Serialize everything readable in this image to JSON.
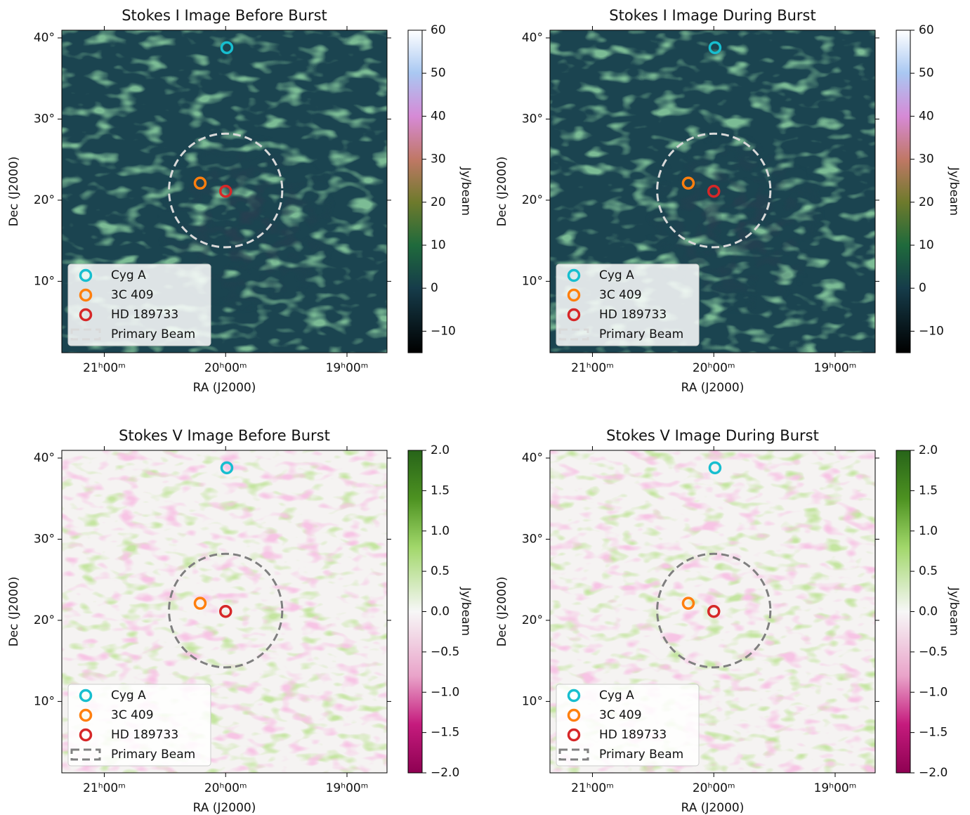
{
  "chart_data": [
    {
      "type": "image",
      "title": "Stokes I Image Before Burst",
      "xlabel": "RA (J2000)",
      "ylabel": "Dec (J2000)",
      "colorbar_label": "Jy/beam",
      "cmap": "cubehelix",
      "xlim": [
        21.35,
        18.67
      ],
      "ylim": [
        1.2,
        40.95
      ],
      "xticks": [
        {
          "value": 21,
          "label": "21ʰ00ᵐ"
        },
        {
          "value": 20,
          "label": "20ʰ00ᵐ"
        },
        {
          "value": 19,
          "label": "19ʰ00ᵐ"
        }
      ],
      "yticks": [
        {
          "value": 10,
          "label": "10°"
        },
        {
          "value": 20,
          "label": "20°"
        },
        {
          "value": 30,
          "label": "30°"
        },
        {
          "value": 40,
          "label": "40°"
        }
      ],
      "clim": [
        -15,
        60
      ],
      "cticks": [
        {
          "value": -10,
          "label": "−10"
        },
        0,
        10,
        20,
        30,
        40,
        50,
        60
      ],
      "series": [
        {
          "name": "Cyg A",
          "color": "#17becf",
          "x": [
            19.99
          ],
          "y": [
            38.8
          ]
        },
        {
          "name": "3C 409",
          "color": "#ff7f0e",
          "x": [
            20.21
          ],
          "y": [
            22.1
          ]
        },
        {
          "name": "HD 189733",
          "color": "#d62728",
          "x": [
            20.0
          ],
          "y": [
            21.1
          ]
        }
      ],
      "beam": {
        "name": "Primary Beam",
        "color": "#d9d9d9",
        "x": 20.0,
        "y": 21.2,
        "radius": 7.0
      },
      "legend": "lower left",
      "grid": false
    },
    {
      "type": "image",
      "title": "Stokes I Image During Burst",
      "xlabel": "RA (J2000)",
      "ylabel": "Dec (J2000)",
      "colorbar_label": "Jy/beam",
      "cmap": "cubehelix",
      "xlim": [
        21.35,
        18.67
      ],
      "ylim": [
        1.2,
        40.95
      ],
      "xticks": [
        {
          "value": 21,
          "label": "21ʰ00ᵐ"
        },
        {
          "value": 20,
          "label": "20ʰ00ᵐ"
        },
        {
          "value": 19,
          "label": "19ʰ00ᵐ"
        }
      ],
      "yticks": [
        {
          "value": 10,
          "label": "10°"
        },
        {
          "value": 20,
          "label": "20°"
        },
        {
          "value": 30,
          "label": "30°"
        },
        {
          "value": 40,
          "label": "40°"
        }
      ],
      "clim": [
        -15,
        60
      ],
      "cticks": [
        {
          "value": -10,
          "label": "−10"
        },
        0,
        10,
        20,
        30,
        40,
        50,
        60
      ],
      "series": [
        {
          "name": "Cyg A",
          "color": "#17becf",
          "x": [
            19.99
          ],
          "y": [
            38.8
          ]
        },
        {
          "name": "3C 409",
          "color": "#ff7f0e",
          "x": [
            20.21
          ],
          "y": [
            22.1
          ]
        },
        {
          "name": "HD 189733",
          "color": "#d62728",
          "x": [
            20.0
          ],
          "y": [
            21.1
          ]
        }
      ],
      "beam": {
        "name": "Primary Beam",
        "color": "#d9d9d9",
        "x": 20.0,
        "y": 21.2,
        "radius": 7.0
      },
      "legend": "lower left",
      "grid": false
    },
    {
      "type": "image",
      "title": "Stokes V Image Before Burst",
      "xlabel": "RA (J2000)",
      "ylabel": "Dec (J2000)",
      "colorbar_label": "Jy/beam",
      "cmap": "PiYG",
      "xlim": [
        21.35,
        18.67
      ],
      "ylim": [
        1.2,
        40.95
      ],
      "xticks": [
        {
          "value": 21,
          "label": "21ʰ00ᵐ"
        },
        {
          "value": 20,
          "label": "20ʰ00ᵐ"
        },
        {
          "value": 19,
          "label": "19ʰ00ᵐ"
        }
      ],
      "yticks": [
        {
          "value": 10,
          "label": "10°"
        },
        {
          "value": 20,
          "label": "20°"
        },
        {
          "value": 30,
          "label": "30°"
        },
        {
          "value": 40,
          "label": "40°"
        }
      ],
      "clim": [
        -2,
        2
      ],
      "cticks": [
        {
          "value": -2,
          "label": "−2.0"
        },
        {
          "value": -1.5,
          "label": "−1.5"
        },
        {
          "value": -1,
          "label": "−1.0"
        },
        {
          "value": -0.5,
          "label": "−0.5"
        },
        {
          "value": 0,
          "label": "0.0"
        },
        0.5,
        {
          "value": 1,
          "label": "1.0"
        },
        1.5,
        {
          "value": 2,
          "label": "2.0"
        }
      ],
      "series": [
        {
          "name": "Cyg A",
          "color": "#17becf",
          "x": [
            19.99
          ],
          "y": [
            38.8
          ]
        },
        {
          "name": "3C 409",
          "color": "#ff7f0e",
          "x": [
            20.21
          ],
          "y": [
            22.1
          ]
        },
        {
          "name": "HD 189733",
          "color": "#d62728",
          "x": [
            20.0
          ],
          "y": [
            21.1
          ]
        }
      ],
      "beam": {
        "name": "Primary Beam",
        "color": "#7f7f7f",
        "x": 20.0,
        "y": 21.2,
        "radius": 7.0
      },
      "legend": "lower left",
      "grid": false
    },
    {
      "type": "image",
      "title": "Stokes V Image During Burst",
      "xlabel": "RA (J2000)",
      "ylabel": "Dec (J2000)",
      "colorbar_label": "Jy/beam",
      "cmap": "PiYG",
      "xlim": [
        21.35,
        18.67
      ],
      "ylim": [
        1.2,
        40.95
      ],
      "xticks": [
        {
          "value": 21,
          "label": "21ʰ00ᵐ"
        },
        {
          "value": 20,
          "label": "20ʰ00ᵐ"
        },
        {
          "value": 19,
          "label": "19ʰ00ᵐ"
        }
      ],
      "yticks": [
        {
          "value": 10,
          "label": "10°"
        },
        {
          "value": 20,
          "label": "20°"
        },
        {
          "value": 30,
          "label": "30°"
        },
        {
          "value": 40,
          "label": "40°"
        }
      ],
      "clim": [
        -2,
        2
      ],
      "cticks": [
        {
          "value": -2,
          "label": "−2.0"
        },
        {
          "value": -1.5,
          "label": "−1.5"
        },
        {
          "value": -1,
          "label": "−1.0"
        },
        {
          "value": -0.5,
          "label": "−0.5"
        },
        {
          "value": 0,
          "label": "0.0"
        },
        0.5,
        {
          "value": 1,
          "label": "1.0"
        },
        1.5,
        {
          "value": 2,
          "label": "2.0"
        }
      ],
      "series": [
        {
          "name": "Cyg A",
          "color": "#17becf",
          "x": [
            19.99
          ],
          "y": [
            38.8
          ]
        },
        {
          "name": "3C 409",
          "color": "#ff7f0e",
          "x": [
            20.21
          ],
          "y": [
            22.1
          ]
        },
        {
          "name": "HD 189733",
          "color": "#d62728",
          "x": [
            20.0
          ],
          "y": [
            21.1
          ]
        }
      ],
      "beam": {
        "name": "Primary Beam",
        "color": "#7f7f7f",
        "x": 20.0,
        "y": 21.2,
        "radius": 7.0
      },
      "legend": "lower left",
      "grid": false
    }
  ]
}
